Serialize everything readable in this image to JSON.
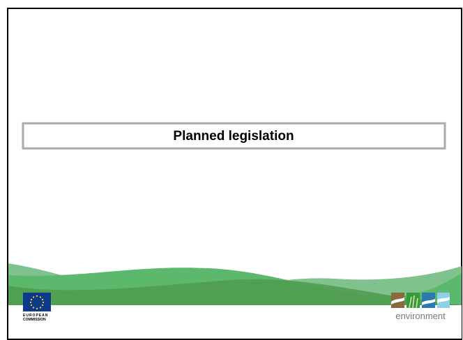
{
  "slide": {
    "title": "Planned legislation",
    "logo_left": [
      "EUROPEAN",
      "COMMISSION"
    ],
    "logo_right": "environment"
  }
}
